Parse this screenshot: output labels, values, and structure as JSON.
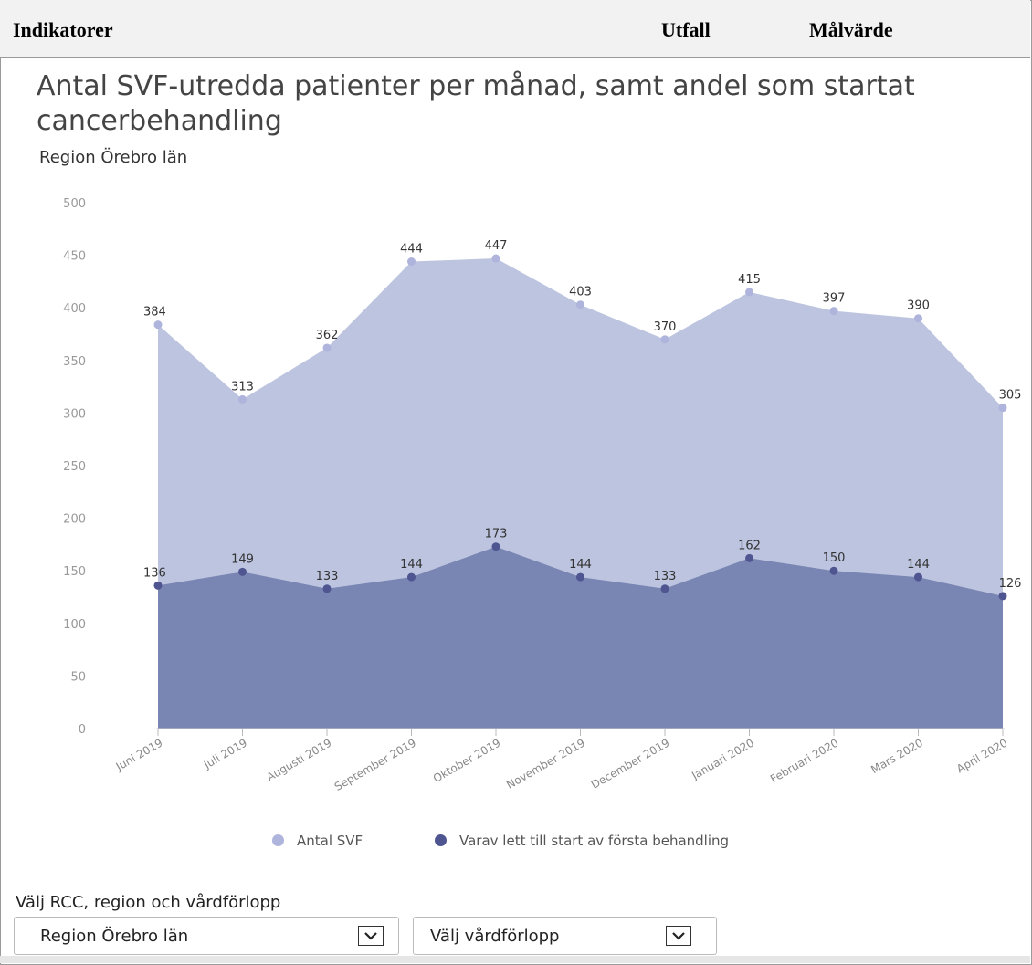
{
  "table_header": {
    "col_indicator": "Indikatorer",
    "col_outcome": "Utfall",
    "col_target": "Målvärde"
  },
  "chart_data": {
    "type": "area",
    "title": "Antal SVF-utredda patienter per månad, samt andel som startat cancerbehandling",
    "subtitle": "Region Örebro län",
    "categories": [
      "Juni 2019",
      "Juli 2019",
      "Augusti 2019",
      "September 2019",
      "Oktober 2019",
      "November 2019",
      "December 2019",
      "Januari 2020",
      "Februari 2020",
      "Mars 2020",
      "April 2020"
    ],
    "series": [
      {
        "name": "Antal SVF",
        "color": "#bcc4df",
        "marker_color": "#aeb4dc",
        "values": [
          384,
          313,
          362,
          444,
          447,
          403,
          370,
          415,
          397,
          390,
          305
        ]
      },
      {
        "name": "Varav lett till start av första behandling",
        "color": "#7985b2",
        "marker_color": "#4f5591",
        "values": [
          136,
          149,
          133,
          144,
          173,
          144,
          133,
          162,
          150,
          144,
          126
        ]
      }
    ],
    "yticks": [
      0,
      50,
      100,
      150,
      200,
      250,
      300,
      350,
      400,
      450,
      500
    ],
    "ylim": [
      0,
      500
    ],
    "legend_position": "bottom",
    "grid": false
  },
  "controls": {
    "label": "Välj RCC, region och vårdförlopp",
    "region_select": "Region Örebro län",
    "pathway_select": "Välj vårdförlopp",
    "chevron_icon": "chevron-down-icon"
  }
}
